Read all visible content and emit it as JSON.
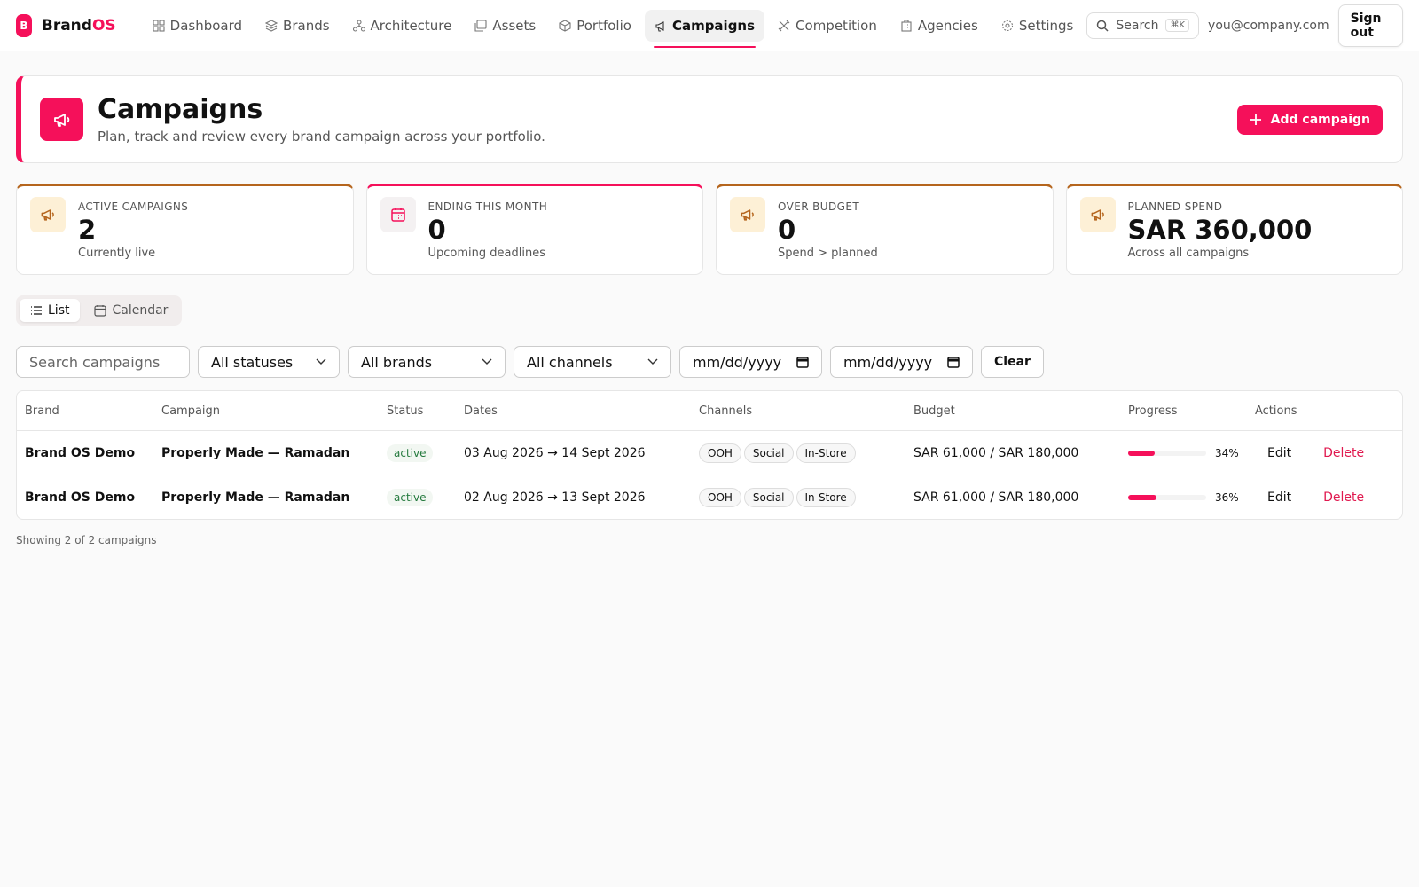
{
  "nav": {
    "logo": "B",
    "brand_prefix": "Brand",
    "brand_suffix": "OS",
    "items": [
      "Dashboard",
      "Brands",
      "Architecture",
      "Assets",
      "Portfolio",
      "Campaigns",
      "Competition",
      "Agencies",
      "Settings"
    ],
    "search": "Search",
    "shortcut": "⌘K",
    "user": "you@company.com",
    "sign_out": "Sign out"
  },
  "header": {
    "title": "Campaigns",
    "subtitle": "Plan, track and review every brand campaign across your portfolio.",
    "add_button": "Add campaign"
  },
  "stats": [
    {
      "label": "ACTIVE CAMPAIGNS",
      "value": "2",
      "note": "Currently live"
    },
    {
      "label": "ENDING THIS MONTH",
      "value": "0",
      "note": "Upcoming deadlines"
    },
    {
      "label": "OVER BUDGET",
      "value": "0",
      "note": "Spend > planned"
    },
    {
      "label": "PLANNED SPEND",
      "value": "SAR 360,000",
      "note": "Across all campaigns"
    }
  ],
  "views": [
    "List",
    "Calendar"
  ],
  "filters": {
    "search": "Search campaigns",
    "status": "All statuses",
    "brand": "All brands",
    "channel": "All channels",
    "date_from": "mm/dd/yyyy",
    "date_to": "mm/dd/yyyy",
    "clear": "Clear"
  },
  "table": {
    "columns": [
      "Brand",
      "Campaign",
      "Status",
      "Dates",
      "Channels",
      "Budget",
      "Progress",
      "Actions"
    ],
    "rows": [
      {
        "brand": "Brand OS Demo",
        "campaign": "Properly Made — Ramadan",
        "status": "active",
        "dates": "03 Aug 2026 → 14 Sept 2026",
        "channels": [
          "OOH",
          "Social",
          "In-Store"
        ],
        "budget": "SAR 61,000 / SAR 180,000",
        "progress": {
          "value": 34,
          "label": "34%"
        },
        "edit": "Edit",
        "delete": "Delete"
      },
      {
        "brand": "Brand OS Demo",
        "campaign": "Properly Made — Ramadan",
        "status": "active",
        "dates": "02 Aug 2026 → 13 Sept 2026",
        "channels": [
          "OOH",
          "Social",
          "In-Store"
        ],
        "budget": "SAR 61,000 / SAR 180,000",
        "progress": {
          "value": 36,
          "label": "36%"
        },
        "edit": "Edit",
        "delete": "Delete"
      }
    ]
  },
  "footer": "Showing 2 of 2 campaigns"
}
